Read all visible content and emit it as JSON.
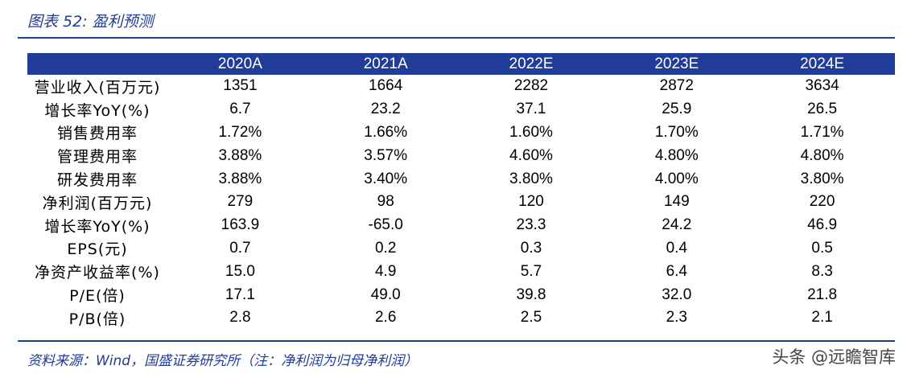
{
  "title": "图表 52:  盈利预测",
  "table": {
    "header": [
      "",
      "2020A",
      "2021A",
      "2022E",
      "2023E",
      "2024E"
    ],
    "rows": [
      {
        "label": "营业收入(百万元)",
        "values": [
          "1351",
          "1664",
          "2282",
          "2872",
          "3634"
        ]
      },
      {
        "label": "增长率YoY(%)",
        "values": [
          "6.7",
          "23.2",
          "37.1",
          "25.9",
          "26.5"
        ]
      },
      {
        "label": "销售费用率",
        "values": [
          "1.72%",
          "1.66%",
          "1.60%",
          "1.70%",
          "1.71%"
        ]
      },
      {
        "label": "管理费用率",
        "values": [
          "3.88%",
          "3.57%",
          "4.60%",
          "4.80%",
          "4.80%"
        ]
      },
      {
        "label": "研发费用率",
        "values": [
          "3.88%",
          "3.40%",
          "3.80%",
          "4.00%",
          "3.80%"
        ]
      },
      {
        "label": "净利润(百万元)",
        "values": [
          "279",
          "98",
          "120",
          "149",
          "220"
        ]
      },
      {
        "label": "增长率YoY(%)",
        "values": [
          "163.9",
          "-65.0",
          "23.3",
          "24.2",
          "46.9"
        ]
      },
      {
        "label": "EPS(元)",
        "values": [
          "0.7",
          "0.2",
          "0.3",
          "0.4",
          "0.5"
        ]
      },
      {
        "label": "净资产收益率(%)",
        "values": [
          "15.0",
          "4.9",
          "5.7",
          "6.4",
          "8.3"
        ]
      },
      {
        "label": "P/E(倍)",
        "values": [
          "17.1",
          "49.0",
          "39.8",
          "32.0",
          "21.8"
        ]
      },
      {
        "label": "P/B(倍)",
        "values": [
          "2.8",
          "2.6",
          "2.5",
          "2.3",
          "2.1"
        ]
      }
    ]
  },
  "source": "资料来源：Wind，国盛证券研究所（注：净利润为归母净利润）",
  "watermark": "头条 @远瞻智库",
  "colors": {
    "accent": "#1f3d99"
  }
}
